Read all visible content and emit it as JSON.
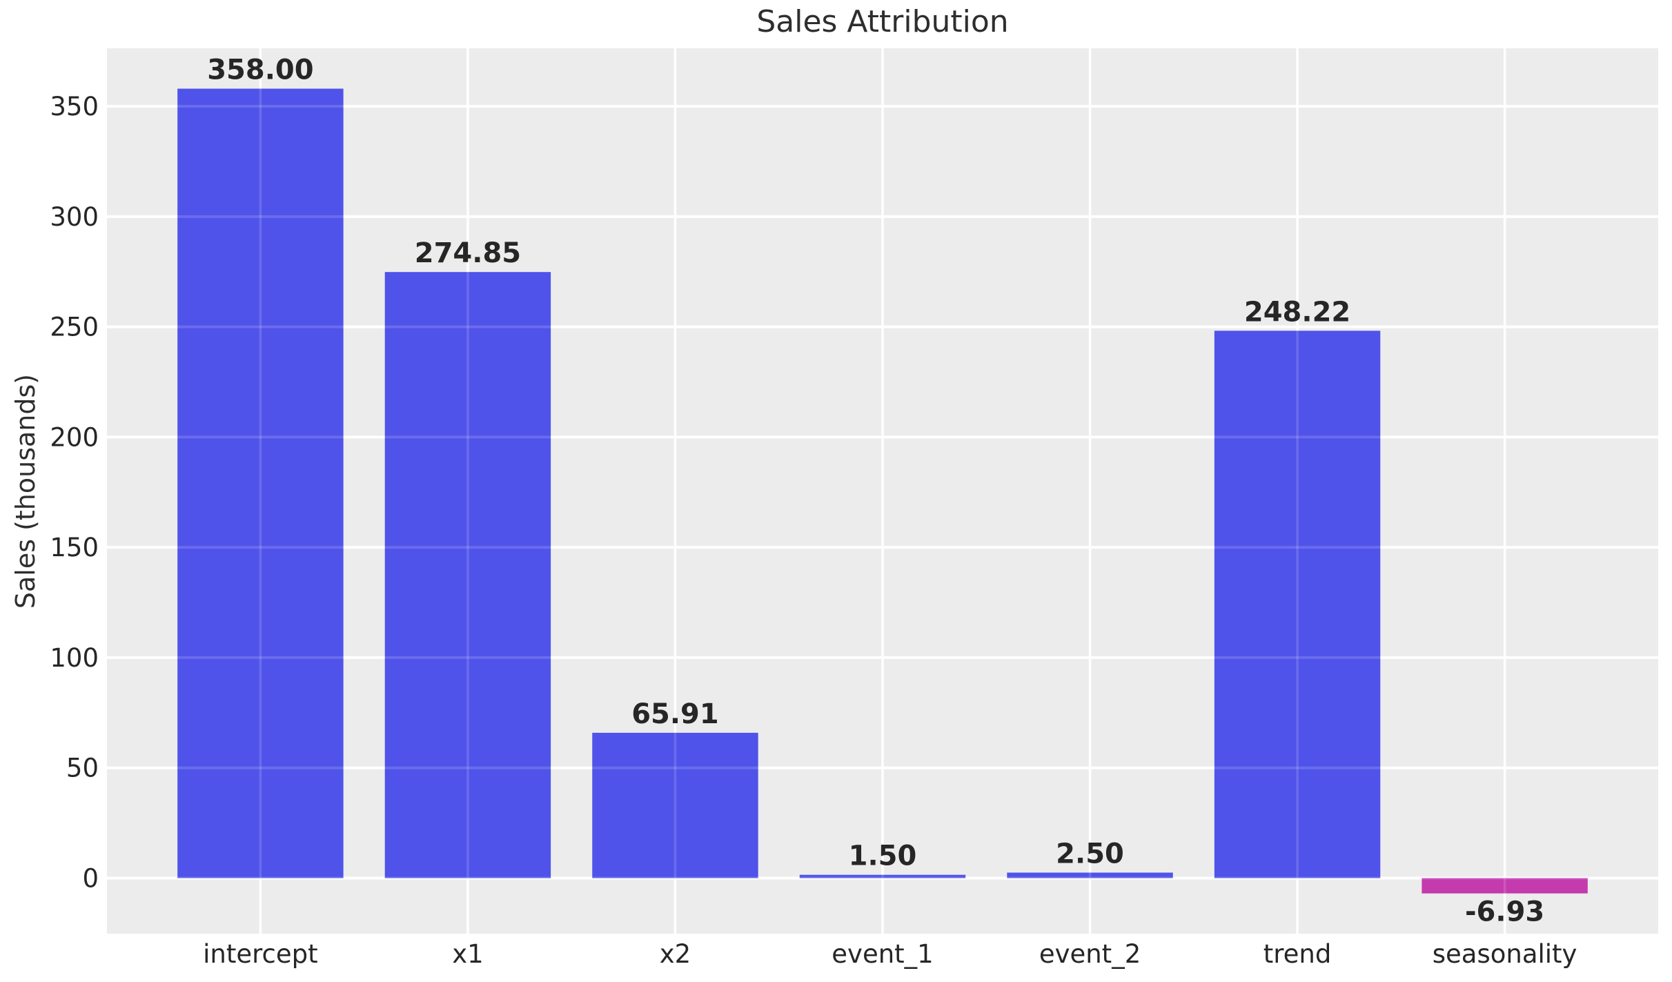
{
  "chart_data": {
    "type": "bar",
    "title": "Sales Attribution",
    "xlabel": "",
    "ylabel": "Sales (thousands)",
    "categories": [
      "intercept",
      "x1",
      "x2",
      "event_1",
      "event_2",
      "trend",
      "seasonality"
    ],
    "values": [
      358.0,
      274.85,
      65.91,
      1.5,
      2.5,
      248.22,
      -6.93
    ],
    "bar_value_labels": [
      "358.00",
      "274.85",
      "65.91",
      "1.50",
      "2.50",
      "248.22",
      "-6.93"
    ],
    "yticks": [
      0,
      50,
      100,
      150,
      200,
      250,
      300,
      350
    ],
    "ylim": [
      -25.2,
      376.3
    ],
    "bar_width_fraction": 0.8,
    "grid": true,
    "legend_position": "none",
    "colors": {
      "positive_bar": "#5053E9",
      "negative_bar": "#C43BAE",
      "plot_background": "#ECECEC",
      "figure_background": "#FFFFFF",
      "gridline": "#FFFFFF",
      "text": "#262626"
    }
  }
}
